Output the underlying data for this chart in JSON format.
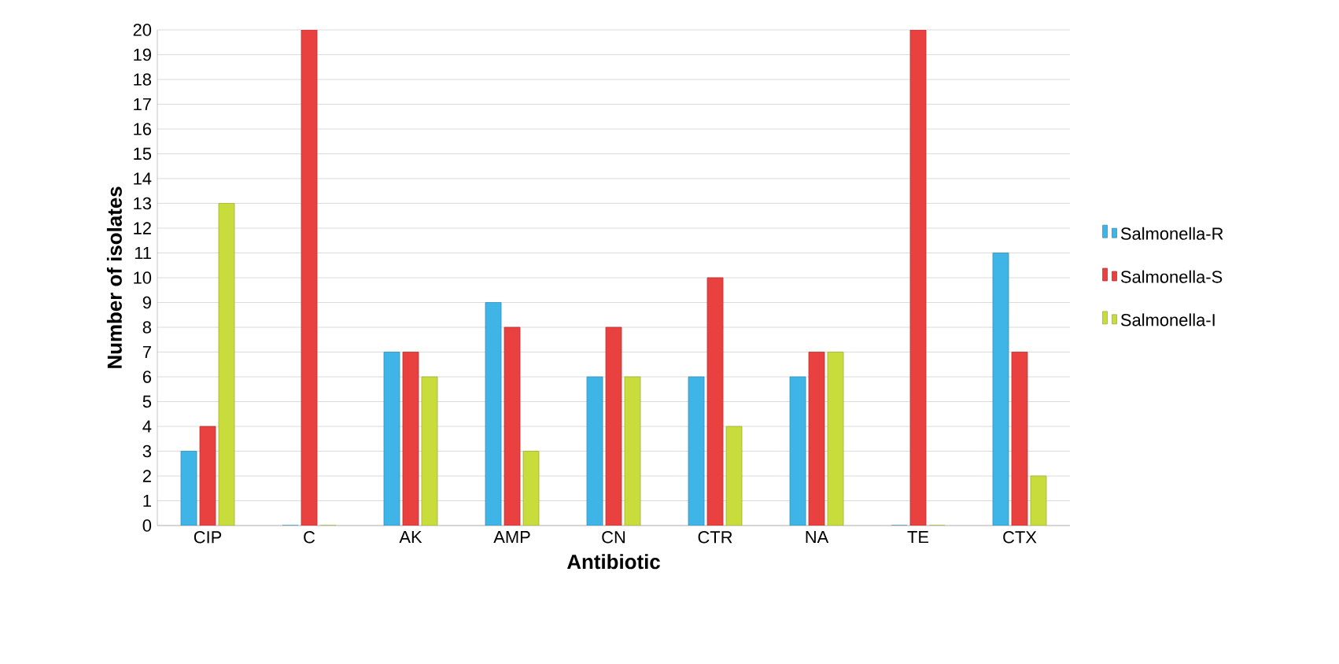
{
  "chart_data": {
    "type": "bar",
    "xlabel": "Antibiotic",
    "ylabel": "Number of isolates",
    "categories": [
      "CIP",
      "C",
      "AK",
      "AMP",
      "CN",
      "CTR",
      "NA",
      "TE",
      "CTX"
    ],
    "series": [
      {
        "name": "Salmonella-R",
        "color": "#3fb4e6",
        "values": [
          3,
          0,
          7,
          9,
          6,
          6,
          6,
          0,
          11
        ]
      },
      {
        "name": "Salmonella-S",
        "color": "#e8413f",
        "values": [
          4,
          20,
          7,
          8,
          8,
          10,
          7,
          20,
          7
        ]
      },
      {
        "name": "Salmonella-I",
        "color": "#c8dc3c",
        "values": [
          13,
          0,
          6,
          3,
          6,
          4,
          7,
          0,
          2
        ]
      }
    ],
    "ylim": [
      0,
      20
    ],
    "yticks": [
      0,
      1,
      2,
      3,
      4,
      5,
      6,
      7,
      8,
      9,
      10,
      11,
      12,
      13,
      14,
      15,
      16,
      17,
      18,
      19,
      20
    ],
    "grid": "y",
    "legend": "right"
  }
}
